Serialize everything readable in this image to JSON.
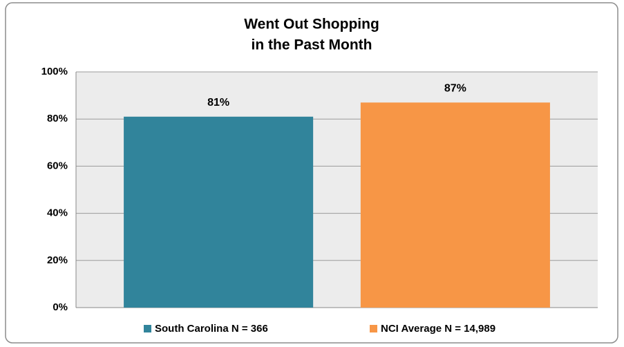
{
  "chart_data": {
    "type": "bar",
    "title": [
      "Went Out Shopping",
      "in the Past Month"
    ],
    "categories": [
      null
    ],
    "series": [
      {
        "name": "South Carolina N = 366",
        "color": "#31849b",
        "values": [
          81
        ],
        "value_labels": [
          "81%"
        ]
      },
      {
        "name": "NCI Average N = 14,989",
        "color": "#f79646",
        "values": [
          87
        ],
        "value_labels": [
          "87%"
        ]
      }
    ],
    "ylim": [
      0,
      100
    ],
    "yticks": [
      {
        "value": 0,
        "label": "0%"
      },
      {
        "value": 20,
        "label": "20%"
      },
      {
        "value": 40,
        "label": "40%"
      },
      {
        "value": 60,
        "label": "60%"
      },
      {
        "value": 80,
        "label": "80%"
      },
      {
        "value": 100,
        "label": "100%"
      }
    ],
    "grid": true,
    "legend": "bottom"
  }
}
